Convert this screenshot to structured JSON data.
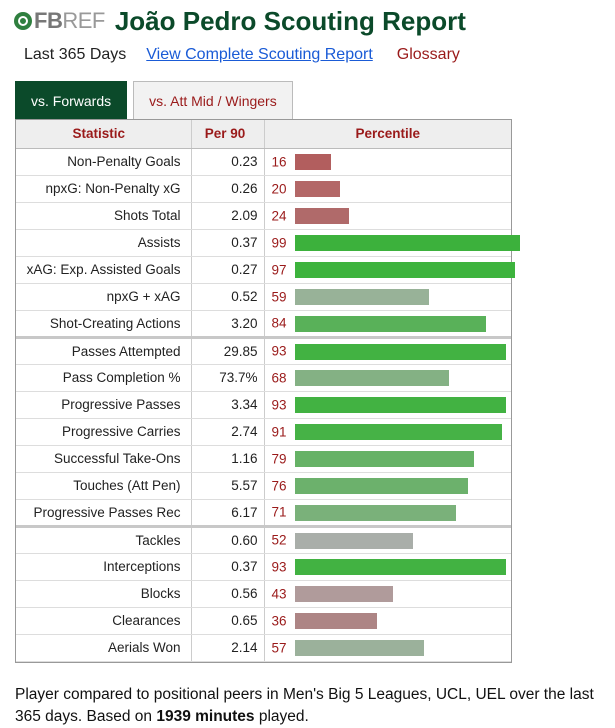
{
  "header": {
    "logo_text_fb": "FB",
    "logo_text_ref": "REF",
    "title": "João Pedro Scouting Report"
  },
  "subnav": {
    "period": "Last 365 Days",
    "report_link": "View Complete Scouting Report",
    "glossary": "Glossary"
  },
  "tabs": [
    {
      "label": "vs. Forwards",
      "active": true
    },
    {
      "label": "vs. Att Mid / Wingers",
      "active": false
    }
  ],
  "table": {
    "headers": {
      "statistic": "Statistic",
      "per90": "Per 90",
      "percentile": "Percentile"
    },
    "groups": [
      {
        "rows": [
          {
            "stat": "Non-Penalty Goals",
            "per90": "0.23",
            "percentile": 16,
            "color": "#b25e5e"
          },
          {
            "stat": "npxG: Non-Penalty xG",
            "per90": "0.26",
            "percentile": 20,
            "color": "#b36767"
          },
          {
            "stat": "Shots Total",
            "per90": "2.09",
            "percentile": 24,
            "color": "#b06a6a"
          },
          {
            "stat": "Assists",
            "per90": "0.37",
            "percentile": 99,
            "color": "#3cb13c"
          },
          {
            "stat": "xAG: Exp. Assisted Goals",
            "per90": "0.27",
            "percentile": 97,
            "color": "#3db33d"
          },
          {
            "stat": "npxG + xAG",
            "per90": "0.52",
            "percentile": 59,
            "color": "#98b298"
          },
          {
            "stat": "Shot-Creating Actions",
            "per90": "3.20",
            "percentile": 84,
            "color": "#59b159"
          }
        ]
      },
      {
        "rows": [
          {
            "stat": "Passes Attempted",
            "per90": "29.85",
            "percentile": 93,
            "color": "#42b242"
          },
          {
            "stat": "Pass Completion %",
            "per90": "73.7%",
            "percentile": 68,
            "color": "#84b184"
          },
          {
            "stat": "Progressive Passes",
            "per90": "3.34",
            "percentile": 93,
            "color": "#42b242"
          },
          {
            "stat": "Progressive Carries",
            "per90": "2.74",
            "percentile": 91,
            "color": "#46b246"
          },
          {
            "stat": "Successful Take-Ons",
            "per90": "1.16",
            "percentile": 79,
            "color": "#66b266"
          },
          {
            "stat": "Touches (Att Pen)",
            "per90": "5.57",
            "percentile": 76,
            "color": "#6cb16c"
          },
          {
            "stat": "Progressive Passes Rec",
            "per90": "6.17",
            "percentile": 71,
            "color": "#7ab17a"
          }
        ]
      },
      {
        "rows": [
          {
            "stat": "Tackles",
            "per90": "0.60",
            "percentile": 52,
            "color": "#a9aea9"
          },
          {
            "stat": "Interceptions",
            "per90": "0.37",
            "percentile": 93,
            "color": "#42b242"
          },
          {
            "stat": "Blocks",
            "per90": "0.56",
            "percentile": 43,
            "color": "#b09b9b"
          },
          {
            "stat": "Clearances",
            "per90": "0.65",
            "percentile": 36,
            "color": "#ad8585"
          },
          {
            "stat": "Aerials Won",
            "per90": "2.14",
            "percentile": 57,
            "color": "#9bb19b"
          }
        ]
      }
    ]
  },
  "footer": {
    "text_before": "Player compared to positional peers in Men's Big 5 Leagues, UCL, UEL over the last 365 days. Based on ",
    "minutes": "1939 minutes",
    "text_after": " played."
  }
}
